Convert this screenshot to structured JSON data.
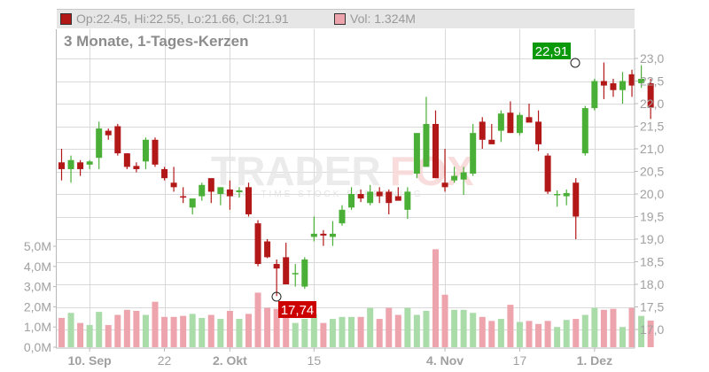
{
  "header": {
    "ohlc_text": "Op:22.45, Hi:22.55, Lo:21.66, Cl:21.91",
    "ohlc_swatch_color": "#b21818",
    "volume_text": "Vol: 1.324M",
    "volume_swatch_color": "#eea4ad"
  },
  "subtitle": "3 Monate, 1-Tages-Kerzen",
  "watermark": {
    "brand_part1": "TRADER",
    "brand_part2": "FOX",
    "tagline": "REAL-TIME STOCK SCREENING"
  },
  "annotations": {
    "high_label": "22,91",
    "low_label": "17,74"
  },
  "colors": {
    "up": "#4aaf36",
    "down": "#b21818",
    "vol_up": "#aadcaa",
    "vol_down": "#eea4ad",
    "grid": "#d9d9d9",
    "axis": "#b0b0b0",
    "high_badge": "#0a990a",
    "low_badge": "#cc0000"
  },
  "chart_data": {
    "type": "candlestick",
    "title": "3 Monate, 1-Tages-Kerzen",
    "price_axis": {
      "position": "right",
      "ticks": [
        "17,0",
        "17,5",
        "18,0",
        "18,5",
        "19,0",
        "19,5",
        "20,0",
        "20,5",
        "21,0",
        "21,5",
        "22,0",
        "22,5",
        "23,0"
      ],
      "range": [
        16.6,
        23.2
      ]
    },
    "volume_axis": {
      "position": "left",
      "ticks": [
        "0,0M",
        "1,0M",
        "2,0M",
        "3,0M",
        "4,0M",
        "5,0M"
      ],
      "range": [
        0,
        5.5
      ]
    },
    "x_ticks": [
      {
        "label": "10. Sep",
        "index": 3,
        "bold": true
      },
      {
        "label": "22",
        "index": 11,
        "bold": false
      },
      {
        "label": "2. Okt",
        "index": 18,
        "bold": true
      },
      {
        "label": "15",
        "index": 27,
        "bold": false
      },
      {
        "label": "4. Nov",
        "index": 41,
        "bold": true
      },
      {
        "label": "17",
        "index": 49,
        "bold": false
      },
      {
        "label": "1. Dez",
        "index": 57,
        "bold": true
      }
    ],
    "candles": [
      {
        "o": 20.7,
        "h": 21.0,
        "l": 20.3,
        "c": 20.55,
        "v": 1.45
      },
      {
        "o": 20.55,
        "h": 20.85,
        "l": 20.25,
        "c": 20.75,
        "v": 1.7
      },
      {
        "o": 20.7,
        "h": 20.75,
        "l": 20.4,
        "c": 20.55,
        "v": 1.2
      },
      {
        "o": 20.65,
        "h": 20.75,
        "l": 20.55,
        "c": 20.72,
        "v": 1.1
      },
      {
        "o": 20.8,
        "h": 21.6,
        "l": 20.55,
        "c": 21.45,
        "v": 1.75
      },
      {
        "o": 21.4,
        "h": 21.45,
        "l": 21.2,
        "c": 21.3,
        "v": 1.1
      },
      {
        "o": 21.5,
        "h": 21.55,
        "l": 20.85,
        "c": 20.9,
        "v": 1.6
      },
      {
        "o": 20.9,
        "h": 20.9,
        "l": 20.55,
        "c": 20.6,
        "v": 1.85
      },
      {
        "o": 20.62,
        "h": 20.7,
        "l": 20.48,
        "c": 20.55,
        "v": 1.8
      },
      {
        "o": 20.72,
        "h": 21.25,
        "l": 20.55,
        "c": 21.2,
        "v": 1.6
      },
      {
        "o": 21.2,
        "h": 21.25,
        "l": 20.6,
        "c": 20.65,
        "v": 2.25
      },
      {
        "o": 20.55,
        "h": 20.6,
        "l": 20.3,
        "c": 20.35,
        "v": 1.5
      },
      {
        "o": 20.25,
        "h": 20.6,
        "l": 20.05,
        "c": 20.15,
        "v": 1.5
      },
      {
        "o": 19.95,
        "h": 20.15,
        "l": 19.8,
        "c": 19.92,
        "v": 1.55
      },
      {
        "o": 19.7,
        "h": 19.85,
        "l": 19.55,
        "c": 19.9,
        "v": 1.65
      },
      {
        "o": 19.95,
        "h": 20.25,
        "l": 19.85,
        "c": 20.2,
        "v": 1.45
      },
      {
        "o": 20.35,
        "h": 20.35,
        "l": 19.8,
        "c": 20.05,
        "v": 1.6
      },
      {
        "o": 20.0,
        "h": 20.15,
        "l": 19.75,
        "c": 20.15,
        "v": 1.4
      },
      {
        "o": 20.1,
        "h": 20.3,
        "l": 19.65,
        "c": 19.95,
        "v": 1.8
      },
      {
        "o": 20.04,
        "h": 20.15,
        "l": 19.92,
        "c": 20.08,
        "v": 1.4
      },
      {
        "o": 20.15,
        "h": 20.25,
        "l": 19.5,
        "c": 19.55,
        "v": 1.65
      },
      {
        "o": 19.35,
        "h": 19.42,
        "l": 18.4,
        "c": 18.45,
        "v": 2.7
      },
      {
        "o": 18.95,
        "h": 19.0,
        "l": 18.58,
        "c": 18.6,
        "v": 1.95
      },
      {
        "o": 18.45,
        "h": 18.55,
        "l": 17.74,
        "c": 18.35,
        "v": 1.9
      },
      {
        "o": 18.6,
        "h": 18.92,
        "l": 18.08,
        "c": 18.0,
        "v": 2.0
      },
      {
        "o": 18.25,
        "h": 18.45,
        "l": 17.95,
        "c": 18.25,
        "v": 1.2
      },
      {
        "o": 17.95,
        "h": 18.6,
        "l": 17.9,
        "c": 18.55,
        "v": 1.4
      },
      {
        "o": 19.05,
        "h": 19.5,
        "l": 18.95,
        "c": 19.12,
        "v": 1.65
      },
      {
        "o": 19.12,
        "h": 19.2,
        "l": 18.85,
        "c": 19.08,
        "v": 1.2
      },
      {
        "o": 19.05,
        "h": 19.4,
        "l": 18.85,
        "c": 19.12,
        "v": 1.4
      },
      {
        "o": 19.35,
        "h": 19.75,
        "l": 19.3,
        "c": 19.65,
        "v": 1.5
      },
      {
        "o": 19.7,
        "h": 20.15,
        "l": 19.65,
        "c": 20.0,
        "v": 1.5
      },
      {
        "o": 20.0,
        "h": 20.1,
        "l": 19.82,
        "c": 19.9,
        "v": 1.5
      },
      {
        "o": 19.8,
        "h": 20.2,
        "l": 19.75,
        "c": 20.05,
        "v": 1.95
      },
      {
        "o": 20.05,
        "h": 20.15,
        "l": 19.8,
        "c": 19.95,
        "v": 1.4
      },
      {
        "o": 20.05,
        "h": 20.1,
        "l": 19.55,
        "c": 19.8,
        "v": 1.95
      },
      {
        "o": 19.95,
        "h": 20.15,
        "l": 19.9,
        "c": 19.85,
        "v": 1.6
      },
      {
        "o": 19.65,
        "h": 20.15,
        "l": 19.45,
        "c": 20.05,
        "v": 1.95
      },
      {
        "o": 20.45,
        "h": 21.15,
        "l": 20.35,
        "c": 21.35,
        "v": 1.6
      },
      {
        "o": 20.6,
        "h": 22.15,
        "l": 20.6,
        "c": 21.55,
        "v": 1.8
      },
      {
        "o": 21.55,
        "h": 21.85,
        "l": 20.35,
        "c": 20.35,
        "v": 4.85
      },
      {
        "o": 20.25,
        "h": 21.0,
        "l": 20.05,
        "c": 20.15,
        "v": 2.6
      },
      {
        "o": 20.3,
        "h": 20.6,
        "l": 20.25,
        "c": 20.4,
        "v": 1.85
      },
      {
        "o": 20.32,
        "h": 20.6,
        "l": 19.98,
        "c": 20.48,
        "v": 1.85
      },
      {
        "o": 20.45,
        "h": 21.55,
        "l": 20.4,
        "c": 21.35,
        "v": 1.7
      },
      {
        "o": 21.6,
        "h": 21.7,
        "l": 21.0,
        "c": 21.2,
        "v": 1.5
      },
      {
        "o": 21.2,
        "h": 21.55,
        "l": 21.15,
        "c": 21.1,
        "v": 1.3
      },
      {
        "o": 21.4,
        "h": 21.85,
        "l": 21.15,
        "c": 21.78,
        "v": 1.4
      },
      {
        "o": 21.8,
        "h": 22.05,
        "l": 21.35,
        "c": 21.35,
        "v": 2.1
      },
      {
        "o": 21.35,
        "h": 21.8,
        "l": 21.3,
        "c": 21.75,
        "v": 1.25
      },
      {
        "o": 21.7,
        "h": 22.0,
        "l": 21.6,
        "c": 21.58,
        "v": 1.3
      },
      {
        "o": 21.6,
        "h": 21.85,
        "l": 20.95,
        "c": 21.1,
        "v": 1.15
      },
      {
        "o": 20.85,
        "h": 20.9,
        "l": 20.0,
        "c": 20.05,
        "v": 1.3
      },
      {
        "o": 19.98,
        "h": 20.08,
        "l": 19.72,
        "c": 20.0,
        "v": 1.0
      },
      {
        "o": 19.95,
        "h": 20.1,
        "l": 19.75,
        "c": 20.02,
        "v": 1.35
      },
      {
        "o": 20.25,
        "h": 20.35,
        "l": 19.0,
        "c": 19.5,
        "v": 1.4
      },
      {
        "o": 20.9,
        "h": 21.95,
        "l": 20.85,
        "c": 21.9,
        "v": 1.6
      },
      {
        "o": 21.9,
        "h": 22.55,
        "l": 21.85,
        "c": 22.5,
        "v": 1.95
      },
      {
        "o": 22.5,
        "h": 22.91,
        "l": 22.1,
        "c": 22.4,
        "v": 1.85
      },
      {
        "o": 22.45,
        "h": 22.55,
        "l": 22.15,
        "c": 22.3,
        "v": 1.9
      },
      {
        "o": 22.3,
        "h": 22.7,
        "l": 22.0,
        "c": 22.5,
        "v": 1.0
      },
      {
        "o": 22.65,
        "h": 22.75,
        "l": 22.15,
        "c": 22.4,
        "v": 1.95
      },
      {
        "o": 22.45,
        "h": 22.85,
        "l": 22.35,
        "c": 22.55,
        "v": 1.55
      },
      {
        "o": 22.45,
        "h": 22.55,
        "l": 21.66,
        "c": 21.91,
        "v": 1.32
      }
    ]
  }
}
